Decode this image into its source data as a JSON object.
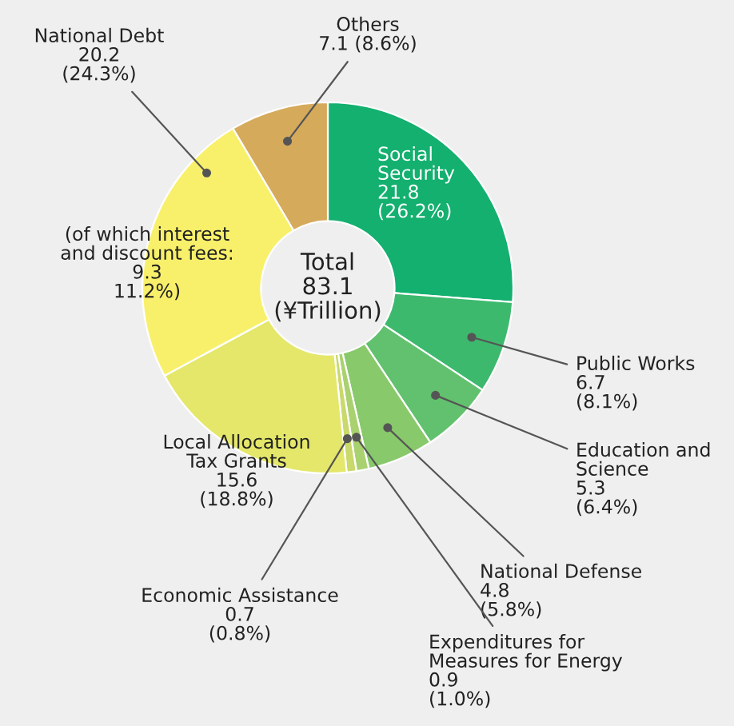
{
  "chart_data": {
    "type": "donut",
    "title": "Total\n83.1\n(¥Trillion)",
    "categories": [
      "Social\nSecurity",
      "Public Works",
      "Education and\nScience",
      "National Defense",
      "Expenditures for\nMeasures for Energy",
      "Economic Assistance",
      "Local Allocation\nTax Grants",
      "National Debt",
      "Others"
    ],
    "values": [
      21.8,
      6.7,
      5.3,
      4.8,
      0.9,
      0.7,
      15.6,
      20.2,
      7.1
    ],
    "value_labels": [
      "21.8\n(26.2%)",
      "6.7\n(8.1%)",
      "5.3\n(6.4%)",
      "4.8\n(5.8%)",
      "0.9\n(1.0%)",
      "0.7\n(0.8%)",
      "15.6\n(18.8%)",
      "20.2\n(24.3%)",
      "7.1 (8.6%)"
    ],
    "colors": [
      "#13b06f",
      "#3db96e",
      "#62c16e",
      "#88c96b",
      "#a9d170",
      "#c9d96b",
      "#e4e76a",
      "#f8f06a",
      "#d5aa5b"
    ],
    "annotations": [
      "(of which interest\nand discount fees:\n9.3\n11.2%)"
    ],
    "legend": false
  }
}
